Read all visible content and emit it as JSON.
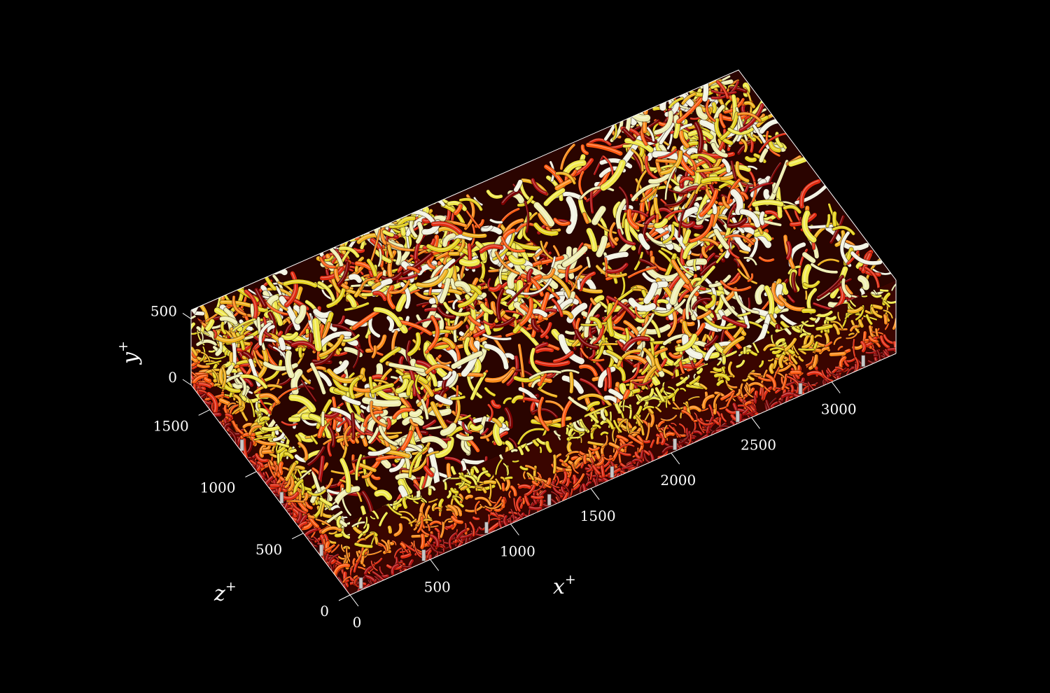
{
  "figure": {
    "background": "#000000",
    "axes_color": "#ffffff",
    "palette": [
      "#7a0000",
      "#b01010",
      "#e02a10",
      "#ff5a10",
      "#ff8c1a",
      "#f2b21c",
      "#e6d21e",
      "#f0e84a",
      "#efeeb0",
      "#f2f2e2"
    ]
  },
  "axes": {
    "x": {
      "symbol": "x",
      "sup": "+",
      "ticks": [
        "0",
        "500",
        "1000",
        "1500",
        "2000",
        "2500",
        "3000"
      ]
    },
    "z": {
      "symbol": "z",
      "sup": "+",
      "ticks": [
        "0",
        "500",
        "1000",
        "1500"
      ]
    },
    "y": {
      "symbol": "y",
      "sup": "+",
      "ticks": [
        "0",
        "500"
      ]
    }
  }
}
